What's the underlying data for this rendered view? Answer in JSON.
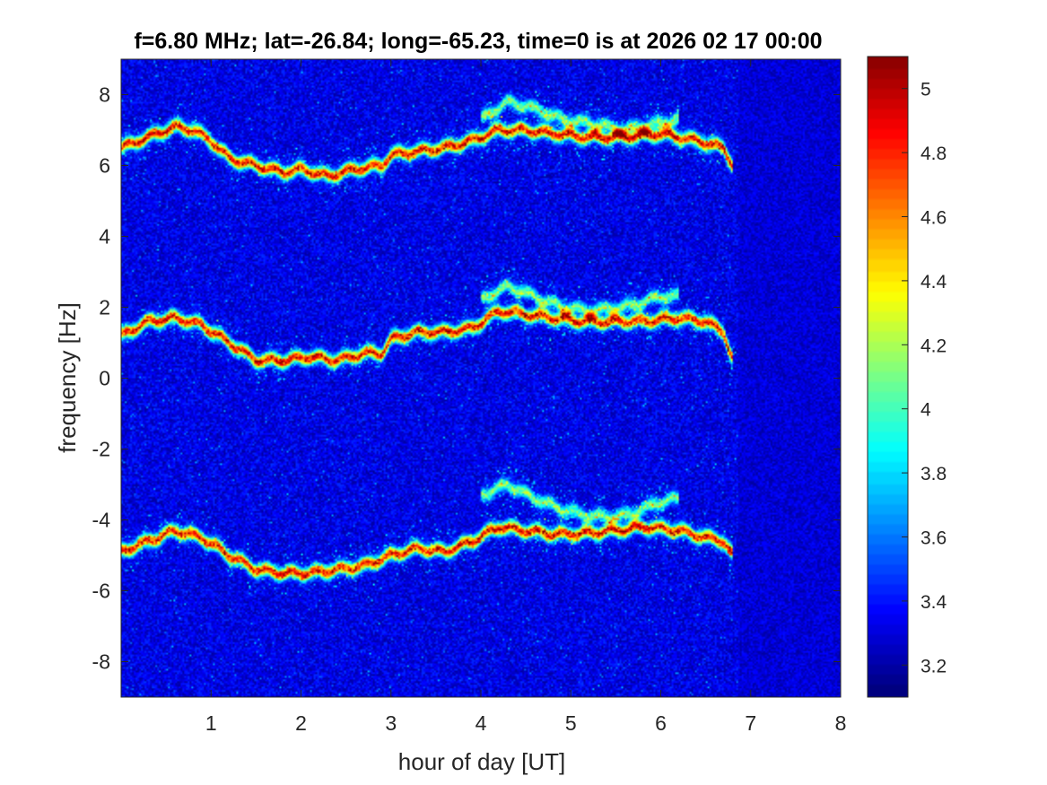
{
  "chart_data": {
    "type": "heatmap",
    "title": "f=6.80 MHz;  lat=-26.84; long=-65.23, time=0 is at 2026 02 17 00:00",
    "xlabel": "hour of day [UT]",
    "ylabel": "frequency [Hz]",
    "xlim": [
      0,
      8
    ],
    "ylim": [
      -9,
      9
    ],
    "x_ticks": [
      "1",
      "2",
      "3",
      "4",
      "5",
      "6",
      "7",
      "8"
    ],
    "x_tick_values": [
      1,
      2,
      3,
      4,
      5,
      6,
      7,
      8
    ],
    "y_ticks": [
      "8",
      "6",
      "4",
      "2",
      "0",
      "-2",
      "-4",
      "-6",
      "-8"
    ],
    "y_tick_values": [
      8,
      6,
      4,
      2,
      0,
      -2,
      -4,
      -6,
      -8
    ],
    "colorbar": {
      "colormap": "jet",
      "clim": [
        3.1,
        5.1
      ],
      "ticks": [
        "5",
        "4.8",
        "4.6",
        "4.4",
        "4.2",
        "4",
        "3.8",
        "3.6",
        "3.4",
        "3.2"
      ],
      "tick_values": [
        5,
        4.8,
        4.6,
        4.4,
        4.2,
        4,
        3.8,
        3.6,
        3.4,
        3.2
      ]
    },
    "background_level": 3.3,
    "data_end_hour": 6.85,
    "traces": [
      {
        "peak_level": 5.0,
        "points": [
          [
            0,
            6.5
          ],
          [
            0.3,
            6.8
          ],
          [
            0.6,
            7.1
          ],
          [
            0.8,
            7.0
          ],
          [
            1.0,
            6.7
          ],
          [
            1.2,
            6.2
          ],
          [
            1.5,
            6.0
          ],
          [
            1.8,
            5.8
          ],
          [
            2.0,
            5.9
          ],
          [
            2.3,
            5.7
          ],
          [
            2.6,
            5.9
          ],
          [
            2.9,
            6.0
          ],
          [
            3.0,
            6.3
          ],
          [
            3.3,
            6.4
          ],
          [
            3.6,
            6.5
          ],
          [
            3.9,
            6.7
          ],
          [
            4.2,
            7.0
          ],
          [
            4.5,
            7.0
          ],
          [
            4.8,
            6.9
          ],
          [
            5.2,
            6.8
          ],
          [
            5.6,
            6.8
          ],
          [
            6.0,
            6.9
          ],
          [
            6.4,
            6.7
          ],
          [
            6.7,
            6.5
          ],
          [
            6.8,
            6.0
          ]
        ]
      },
      {
        "peak_level": 5.0,
        "points": [
          [
            0,
            1.2
          ],
          [
            0.3,
            1.6
          ],
          [
            0.6,
            1.7
          ],
          [
            0.9,
            1.5
          ],
          [
            1.2,
            1.0
          ],
          [
            1.5,
            0.5
          ],
          [
            1.8,
            0.5
          ],
          [
            2.1,
            0.6
          ],
          [
            2.4,
            0.5
          ],
          [
            2.7,
            0.7
          ],
          [
            2.9,
            0.7
          ],
          [
            3.0,
            1.1
          ],
          [
            3.3,
            1.3
          ],
          [
            3.6,
            1.3
          ],
          [
            3.9,
            1.4
          ],
          [
            4.2,
            1.9
          ],
          [
            4.5,
            1.8
          ],
          [
            4.8,
            1.7
          ],
          [
            5.1,
            1.6
          ],
          [
            5.5,
            1.6
          ],
          [
            5.8,
            1.6
          ],
          [
            6.2,
            1.7
          ],
          [
            6.5,
            1.6
          ],
          [
            6.7,
            1.3
          ],
          [
            6.8,
            0.5
          ]
        ]
      },
      {
        "peak_level": 5.0,
        "points": [
          [
            0,
            -4.9
          ],
          [
            0.3,
            -4.6
          ],
          [
            0.6,
            -4.3
          ],
          [
            0.9,
            -4.5
          ],
          [
            1.2,
            -5.0
          ],
          [
            1.5,
            -5.4
          ],
          [
            1.8,
            -5.5
          ],
          [
            2.1,
            -5.5
          ],
          [
            2.4,
            -5.4
          ],
          [
            2.7,
            -5.3
          ],
          [
            3.0,
            -5.0
          ],
          [
            3.3,
            -4.8
          ],
          [
            3.6,
            -4.9
          ],
          [
            3.9,
            -4.6
          ],
          [
            4.2,
            -4.2
          ],
          [
            4.5,
            -4.3
          ],
          [
            4.8,
            -4.4
          ],
          [
            5.1,
            -4.4
          ],
          [
            5.5,
            -4.3
          ],
          [
            5.8,
            -4.2
          ],
          [
            6.2,
            -4.3
          ],
          [
            6.5,
            -4.5
          ],
          [
            6.7,
            -4.6
          ],
          [
            6.8,
            -5.0
          ]
        ]
      },
      {
        "peak_level": 4.2,
        "points": [
          [
            4.0,
            7.3
          ],
          [
            4.3,
            7.8
          ],
          [
            4.6,
            7.6
          ],
          [
            4.9,
            7.3
          ],
          [
            5.2,
            7.2
          ],
          [
            5.6,
            7.0
          ],
          [
            6.0,
            7.2
          ],
          [
            6.2,
            7.3
          ]
        ]
      },
      {
        "peak_level": 4.2,
        "points": [
          [
            4.0,
            2.2
          ],
          [
            4.3,
            2.6
          ],
          [
            4.6,
            2.3
          ],
          [
            4.9,
            2.0
          ],
          [
            5.2,
            1.9
          ],
          [
            5.6,
            2.0
          ],
          [
            6.0,
            2.3
          ],
          [
            6.2,
            2.3
          ]
        ]
      },
      {
        "peak_level": 4.2,
        "points": [
          [
            4.0,
            -3.3
          ],
          [
            4.3,
            -3.0
          ],
          [
            4.6,
            -3.4
          ],
          [
            4.9,
            -3.7
          ],
          [
            5.2,
            -3.9
          ],
          [
            5.6,
            -3.9
          ],
          [
            6.0,
            -3.5
          ],
          [
            6.2,
            -3.4
          ]
        ]
      }
    ]
  }
}
